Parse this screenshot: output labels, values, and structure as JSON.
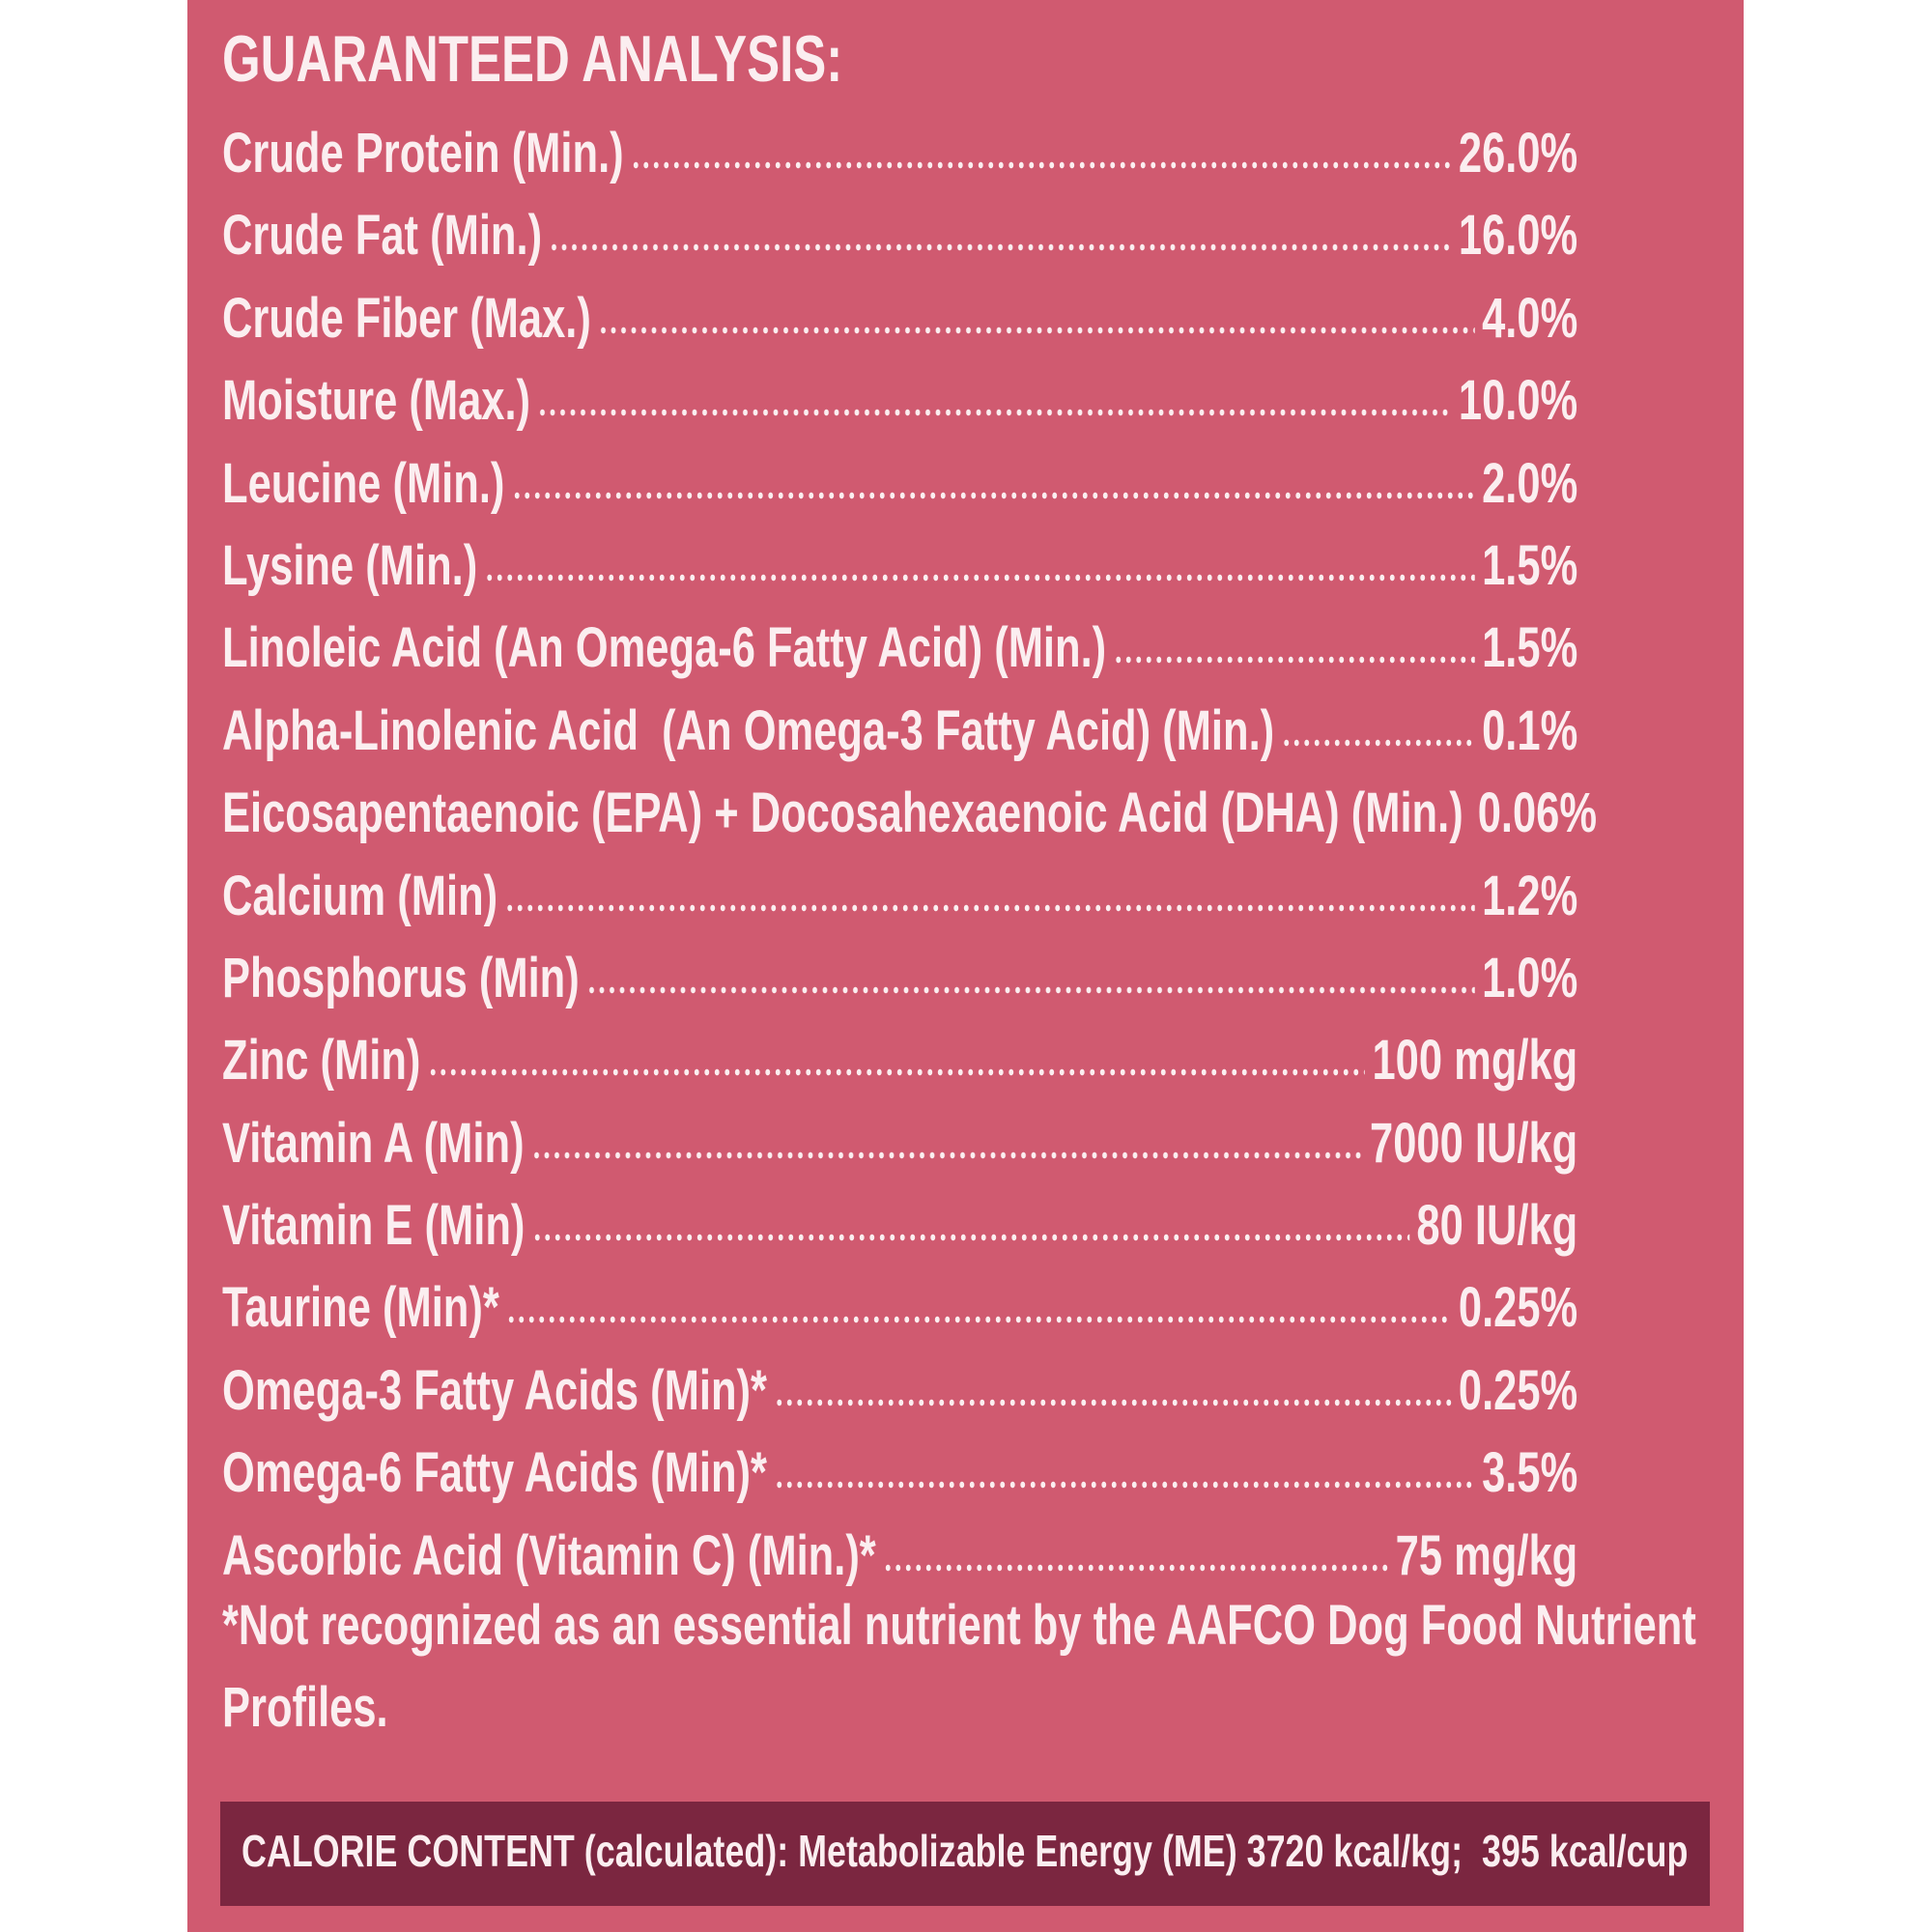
{
  "header": {
    "title": "GUARANTEED ANALYSIS:"
  },
  "rows": [
    {
      "label": "Crude Protein (Min.)",
      "value": "26.0%"
    },
    {
      "label": "Crude Fat (Min.)",
      "value": "16.0%"
    },
    {
      "label": "Crude Fiber (Max.)",
      "value": "4.0%"
    },
    {
      "label": "Moisture (Max.)",
      "value": "10.0%"
    },
    {
      "label": "Leucine (Min.)",
      "value": "2.0%"
    },
    {
      "label": "Lysine (Min.)",
      "value": "1.5%"
    },
    {
      "label": "Linoleic Acid (An Omega-6 Fatty Acid) (Min.)",
      "value": "1.5%"
    },
    {
      "label": "Alpha-Linolenic Acid  (An Omega-3 Fatty Acid) (Min.)",
      "value": "0.1%"
    },
    {
      "label": "Eicosapentaenoic (EPA) + Docosahexaenoic Acid (DHA) (Min.)",
      "value": "0.06%"
    },
    {
      "label": "Calcium (Min)",
      "value": "1.2%"
    },
    {
      "label": "Phosphorus (Min)",
      "value": "1.0%"
    },
    {
      "label": "Zinc (Min)",
      "value": "100 mg/kg"
    },
    {
      "label": "Vitamin A (Min)",
      "value": "7000 IU/kg"
    },
    {
      "label": "Vitamin E (Min)",
      "value": "80 IU/kg"
    },
    {
      "label": "Taurine (Min)*",
      "value": "0.25%"
    },
    {
      "label": "Omega-3 Fatty Acids (Min)*",
      "value": "0.25%"
    },
    {
      "label": "Omega-6 Fatty Acids (Min)*",
      "value": "3.5%"
    },
    {
      "label": "Ascorbic Acid (Vitamin C) (Min.)*",
      "value": "75 mg/kg"
    }
  ],
  "footnote": "*Not recognized as an essential nutrient by the AAFCO Dog Food Nutrient Profiles.",
  "calorie_content": "CALORIE CONTENT (calculated): Metabolizable Energy (ME) 3720 kcal/kg;  395 kcal/cup"
}
